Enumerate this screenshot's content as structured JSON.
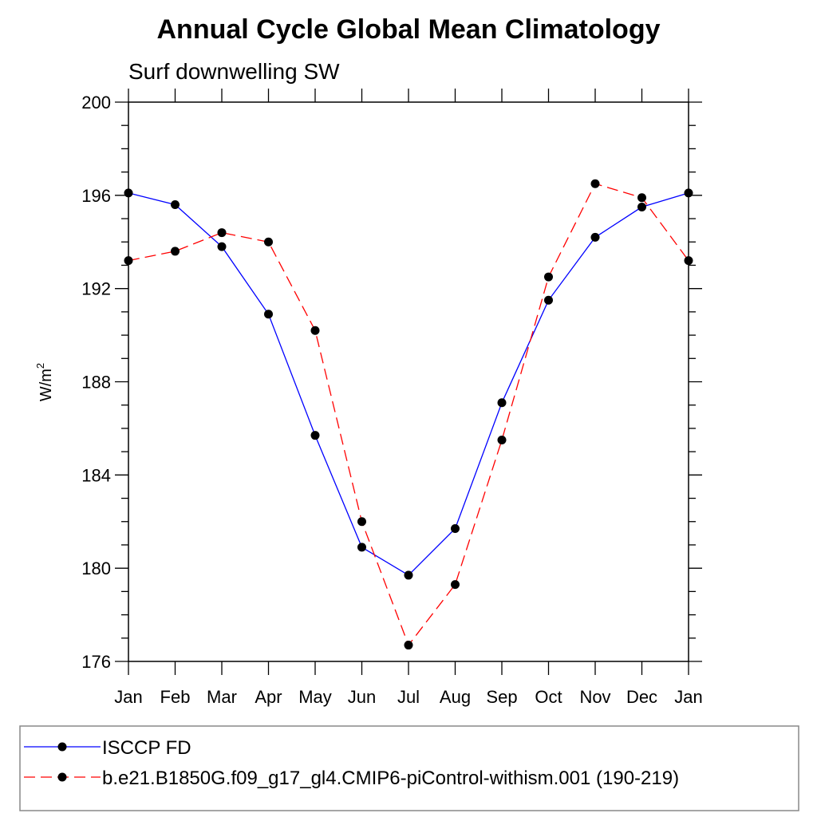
{
  "chart_data": {
    "type": "line",
    "title": "Annual Cycle Global Mean Climatology",
    "subtitle": "Surf downwelling SW",
    "ylabel_base": "W/m",
    "ylabel_sup": "2",
    "categories": [
      "Jan",
      "Feb",
      "Mar",
      "Apr",
      "May",
      "Jun",
      "Jul",
      "Aug",
      "Sep",
      "Oct",
      "Nov",
      "Dec",
      "Jan"
    ],
    "ylim": [
      176,
      200
    ],
    "yticks": [
      176,
      180,
      184,
      188,
      192,
      196,
      200
    ],
    "grid": false,
    "legend_position": "bottom",
    "series": [
      {
        "name": "ISCCP FD",
        "color": "#0000ff",
        "line_style": "solid",
        "marker": "filled-circle",
        "values": [
          196.1,
          195.6,
          193.8,
          190.9,
          185.7,
          180.9,
          179.7,
          181.7,
          187.1,
          191.5,
          194.2,
          195.5,
          196.1
        ]
      },
      {
        "name": "b.e21.B1850G.f09_g17_gl4.CMIP6-piControl-withism.001 (190-219)",
        "color": "#ff0000",
        "line_style": "dashed",
        "marker": "filled-circle",
        "values": [
          193.2,
          193.6,
          194.4,
          194.0,
          190.2,
          182.0,
          176.7,
          179.3,
          185.5,
          192.5,
          196.5,
          195.9,
          193.2
        ]
      }
    ]
  }
}
